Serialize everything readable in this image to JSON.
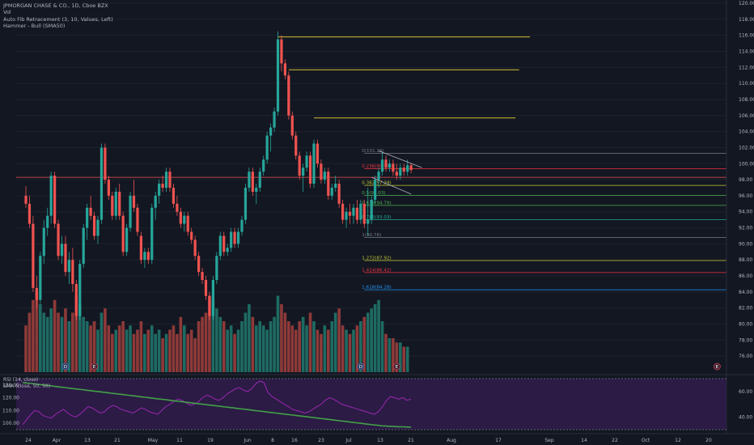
{
  "legend": {
    "symbol": "JPMORGAN CHASE & CO., 1D, Cboe BZX",
    "vol": "Vol",
    "fib": "Auto Fib Retracement (3, 10, Values, Left)",
    "hammer": "Hammer - Bull (SMA50)"
  },
  "rsi_legend": {
    "rsi": "RSI (14, close)",
    "sma": "SMA (close, 50, 50)"
  },
  "colors": {
    "background": "#131722",
    "up": "#26a69a",
    "down": "#ef5350",
    "vol_up": "#1e6b63",
    "vol_down": "#8e3a39",
    "rsi_line": "#9c27b0",
    "sma_line": "#43a047",
    "resistance_line": "#d4c030",
    "price_line": "#ef5350"
  },
  "chart_data": [
    {
      "type": "candlestick",
      "title": "JPMORGAN CHASE & CO., 1D, Cboe BZX",
      "ylim": [
        74,
        120
      ],
      "y_ticks": [
        "120.00",
        "118.00",
        "116.00",
        "114.00",
        "112.00",
        "110.00",
        "108.00",
        "106.00",
        "104.00",
        "102.00",
        "100.00",
        "98.00",
        "96.00",
        "94.00",
        "92.00",
        "90.00",
        "88.00",
        "86.00",
        "84.00",
        "82.00",
        "80.00",
        "78.00",
        "76.00"
      ],
      "x_ticks": [
        "24",
        "Apr",
        "13",
        "21",
        "May",
        "11",
        "19",
        "Jun",
        "8",
        "16",
        "23",
        "Jul",
        "13",
        "21",
        "Aug",
        "17",
        "Sep",
        "14",
        "22",
        "Oct",
        "12",
        "20"
      ],
      "ohlc": [
        [
          96,
          97.2,
          94.5,
          95
        ],
        [
          95,
          96,
          92,
          92.5
        ],
        [
          92.5,
          93.5,
          84,
          84.5
        ],
        [
          84.5,
          86,
          82,
          83
        ],
        [
          83,
          89,
          82.5,
          88.5
        ],
        [
          88.5,
          93,
          87.5,
          92
        ],
        [
          92,
          94.5,
          91,
          93.5
        ],
        [
          93.5,
          99,
          92.5,
          98.5
        ],
        [
          98.5,
          99,
          92,
          92.5
        ],
        [
          92.5,
          93,
          88,
          88.5
        ],
        [
          88.5,
          91,
          87.5,
          90
        ],
        [
          90,
          91,
          86,
          86.5
        ],
        [
          86.5,
          89,
          85,
          88
        ],
        [
          88,
          89.5,
          84,
          85
        ],
        [
          85,
          85.5,
          80.5,
          81
        ],
        [
          81,
          88,
          80.5,
          87.5
        ],
        [
          87.5,
          92.5,
          87,
          92
        ],
        [
          92,
          95,
          90.5,
          94.5
        ],
        [
          94.5,
          96,
          93,
          93.5
        ],
        [
          93.5,
          94,
          90.5,
          91
        ],
        [
          91,
          93.5,
          90,
          93
        ],
        [
          93,
          102.5,
          92.5,
          102
        ],
        [
          102,
          102.5,
          97.5,
          98
        ],
        [
          98,
          98.5,
          95.5,
          96
        ],
        [
          96,
          96.5,
          93,
          93.5
        ],
        [
          93.5,
          97,
          93,
          96.5
        ],
        [
          96.5,
          97.5,
          93,
          93.5
        ],
        [
          93.5,
          94,
          88.5,
          89
        ],
        [
          89,
          92.5,
          88.5,
          92
        ],
        [
          92,
          96.5,
          91.5,
          96
        ],
        [
          96,
          98,
          94,
          94.5
        ],
        [
          94.5,
          95,
          91,
          91.5
        ],
        [
          91,
          91.5,
          87.5,
          88
        ],
        [
          88,
          89.5,
          87,
          89
        ],
        [
          89,
          89.5,
          87.5,
          88
        ],
        [
          88,
          95,
          87.5,
          94.5
        ],
        [
          94.5,
          96.5,
          93,
          96
        ],
        [
          96,
          98,
          95,
          97.5
        ],
        [
          97.5,
          98.5,
          96.5,
          97
        ],
        [
          97,
          99.5,
          96.5,
          99
        ],
        [
          99,
          99.5,
          96.5,
          97
        ],
        [
          97,
          97.5,
          94.5,
          95
        ],
        [
          95,
          96,
          93.5,
          94
        ],
        [
          94,
          94.5,
          92,
          92.5
        ],
        [
          92.5,
          94,
          91.5,
          93.5
        ],
        [
          93.5,
          94,
          91,
          91.5
        ],
        [
          91.5,
          92,
          90,
          90.5
        ],
        [
          90.5,
          91,
          88,
          88.5
        ],
        [
          88.5,
          89,
          86,
          86.5
        ],
        [
          86.5,
          87,
          85,
          85.5
        ],
        [
          85.5,
          86,
          83,
          83.5
        ],
        [
          83.5,
          84,
          80.5,
          81
        ],
        [
          81,
          86,
          80.5,
          85.5
        ],
        [
          85.5,
          89,
          85,
          88.5
        ],
        [
          88.5,
          91.5,
          88,
          91
        ],
        [
          91,
          91.5,
          88.5,
          89
        ],
        [
          89,
          90,
          88.5,
          89.5
        ],
        [
          89.5,
          92,
          89,
          91.5
        ],
        [
          91.5,
          92,
          89.5,
          90
        ],
        [
          90,
          92,
          89.5,
          91.5
        ],
        [
          91.5,
          93.5,
          91,
          93
        ],
        [
          93,
          97.5,
          92.5,
          97
        ],
        [
          97,
          99.5,
          96.5,
          99
        ],
        [
          99,
          99.5,
          96,
          96.5
        ],
        [
          96.5,
          97.5,
          95,
          97
        ],
        [
          97,
          99.5,
          96.5,
          99
        ],
        [
          99,
          101,
          98.5,
          100.5
        ],
        [
          100.5,
          104,
          100,
          103.5
        ],
        [
          103.5,
          105,
          101.5,
          104.5
        ],
        [
          104.5,
          107,
          104,
          106.5
        ],
        [
          106.5,
          116.5,
          106,
          115.5
        ],
        [
          115.5,
          116,
          111.5,
          112.5
        ],
        [
          112.5,
          113,
          110.5,
          111
        ],
        [
          111,
          111.5,
          105.5,
          106
        ],
        [
          106,
          106.5,
          103,
          103.5
        ],
        [
          103.5,
          104,
          100.5,
          101
        ],
        [
          101,
          101.5,
          98,
          98.5
        ],
        [
          98.5,
          100,
          96.5,
          99.5
        ],
        [
          99.5,
          101.5,
          99,
          101
        ],
        [
          101,
          101.5,
          97,
          97.5
        ],
        [
          97.5,
          103,
          97,
          102.5
        ],
        [
          102.5,
          103,
          99.5,
          100
        ],
        [
          100,
          100.5,
          97.5,
          98
        ],
        [
          98,
          99.5,
          97.5,
          99
        ],
        [
          99,
          99.5,
          95.5,
          96
        ],
        [
          96,
          97.5,
          95.5,
          97
        ],
        [
          97,
          98.5,
          96.5,
          97.5
        ],
        [
          97.5,
          98,
          94.5,
          95
        ],
        [
          95,
          95.5,
          92.5,
          93
        ],
        [
          93,
          94.5,
          92,
          94
        ],
        [
          94,
          95,
          92.5,
          93.5
        ],
        [
          93.5,
          95,
          92.5,
          94.5
        ],
        [
          94.5,
          95.5,
          92.5,
          93
        ],
        [
          93,
          95.5,
          92.5,
          95
        ],
        [
          95,
          95.5,
          92,
          92.5
        ],
        [
          92.5,
          97,
          91,
          93
        ],
        [
          93,
          96,
          92.5,
          95.5
        ],
        [
          95.5,
          98.5,
          95,
          98
        ],
        [
          98,
          99.5,
          97,
          99
        ],
        [
          99,
          101.5,
          98.5,
          100.5
        ],
        [
          100.5,
          101,
          99,
          99.5
        ],
        [
          99.5,
          100.5,
          99,
          100
        ],
        [
          100,
          100.5,
          98.5,
          99
        ],
        [
          99,
          100,
          98,
          98.5
        ],
        [
          98.5,
          100,
          98,
          99.5
        ],
        [
          99.5,
          100,
          98.5,
          99
        ],
        [
          99,
          100.5,
          98.5,
          99.8
        ],
        [
          99.8,
          100,
          98.8,
          99.2
        ]
      ],
      "volume_rel": [
        0.55,
        0.7,
        0.85,
        0.95,
        0.8,
        0.7,
        0.65,
        0.75,
        0.85,
        0.7,
        0.65,
        0.75,
        0.6,
        0.7,
        0.9,
        0.8,
        0.65,
        0.6,
        0.55,
        0.6,
        0.5,
        0.7,
        0.75,
        0.55,
        0.45,
        0.5,
        0.55,
        0.6,
        0.5,
        0.55,
        0.45,
        0.5,
        0.6,
        0.45,
        0.5,
        0.55,
        0.45,
        0.5,
        0.4,
        0.45,
        0.5,
        0.55,
        0.45,
        0.65,
        0.55,
        0.45,
        0.5,
        0.4,
        0.6,
        0.65,
        0.7,
        0.9,
        0.85,
        0.75,
        0.65,
        0.6,
        0.5,
        0.55,
        0.45,
        0.5,
        0.6,
        0.7,
        0.8,
        0.65,
        0.55,
        0.6,
        0.55,
        0.5,
        0.6,
        0.65,
        0.9,
        0.8,
        0.7,
        0.6,
        0.55,
        0.5,
        0.6,
        0.65,
        0.55,
        0.7,
        0.6,
        0.5,
        0.45,
        0.55,
        0.5,
        0.6,
        0.7,
        0.75,
        0.55,
        0.5,
        0.45,
        0.5,
        0.55,
        0.6,
        0.65,
        0.7,
        0.75,
        0.8,
        0.85,
        0.6,
        0.45,
        0.4,
        0.4,
        0.35,
        0.35,
        0.3,
        0.3
      ],
      "fib_levels": [
        {
          "label": "0(101.29)",
          "price": 101.29,
          "color": "#787b86"
        },
        {
          "label": "0.236(99.37)",
          "price": 99.37,
          "color": "#f23645"
        },
        {
          "label": "0.382(97.29)",
          "price": 97.29,
          "color": "#c0ca33"
        },
        {
          "label": "0.5(96.03)",
          "price": 96.03,
          "color": "#4caf50"
        },
        {
          "label": "0.618(94.79)",
          "price": 94.79,
          "color": "#4caf50"
        },
        {
          "label": "0.786(93.03)",
          "price": 93.03,
          "color": "#22ab94"
        },
        {
          "label": "1(90.78)",
          "price": 90.78,
          "color": "#787b86"
        },
        {
          "label": "1.272(87.92)",
          "price": 87.92,
          "color": "#c0ca33"
        },
        {
          "label": "1.414(86.42)",
          "price": 86.42,
          "color": "#f23645"
        },
        {
          "label": "1.618(84.28)",
          "price": 84.28,
          "color": "#2196f3"
        }
      ],
      "resistance_lines": [
        {
          "price": 115.8,
          "from_bar": 70,
          "to_bar": 140
        },
        {
          "price": 111.7,
          "from_bar": 73,
          "to_bar": 137
        },
        {
          "price": 105.7,
          "from_bar": 80,
          "to_bar": 136
        }
      ],
      "current_price": 98.3,
      "event_markers": [
        {
          "label": "D",
          "bar": 11
        },
        {
          "label": "E",
          "bar": 19
        },
        {
          "label": "D",
          "bar": 93
        },
        {
          "label": "E",
          "bar": 103
        },
        {
          "label": "E",
          "bar": 192
        }
      ]
    },
    {
      "type": "line",
      "title": "RSI (14, close)",
      "ylim": [
        30,
        70
      ],
      "y_ticks_left": [
        "130.00",
        "120.00",
        "110.00",
        "100.00"
      ],
      "y_ticks_right": [
        "60.00",
        "40.00"
      ],
      "rsi": [
        34,
        38,
        42,
        45,
        44,
        41,
        40,
        39,
        42,
        44,
        46,
        43,
        41,
        40,
        42,
        45,
        48,
        47,
        45,
        43,
        44,
        47,
        49,
        48,
        46,
        45,
        44,
        43,
        45,
        47,
        46,
        44,
        43,
        42,
        45,
        48,
        50,
        52,
        54,
        53,
        51,
        49,
        50,
        52,
        55,
        57,
        56,
        54,
        53,
        55,
        58,
        60,
        62,
        63,
        61,
        60,
        62,
        66,
        68,
        67,
        59,
        56,
        54,
        52,
        50,
        48,
        46,
        45,
        44,
        43,
        44,
        46,
        48,
        50,
        53,
        55,
        54,
        52,
        50,
        49,
        48,
        47,
        46,
        45,
        44,
        43,
        42,
        44,
        48,
        53,
        56,
        55,
        54,
        55,
        53,
        54
      ],
      "sma": [
        132,
        131.6,
        131.2,
        130.8,
        130.4,
        130,
        129.6,
        129.2,
        128.8,
        128.4,
        128,
        127.6,
        127.2,
        126.8,
        126.4,
        126,
        125.6,
        125.2,
        124.8,
        124.4,
        124,
        123.6,
        123.2,
        122.8,
        122.4,
        122,
        121.6,
        121.2,
        120.8,
        120.4,
        120,
        119.6,
        119.2,
        118.8,
        118.4,
        118,
        117.6,
        117.2,
        116.8,
        116.4,
        116,
        115.6,
        115.2,
        114.8,
        114.4,
        114,
        113.6,
        113.2,
        112.8,
        112.4,
        112,
        111.6,
        111.2,
        110.8,
        110.4,
        110,
        109.6,
        109.2,
        108.8,
        108.4,
        108,
        107.6,
        107.2,
        106.8,
        106.4,
        106,
        105.6,
        105.2,
        104.8,
        104.4,
        104,
        103.6,
        103.2,
        102.8,
        102.4,
        102,
        101.6,
        101.2,
        100.8,
        100.4,
        100,
        99.6,
        99.2,
        98.8,
        98.4,
        98,
        97.8,
        97.6,
        97.4,
        97.3,
        97.2,
        97.1,
        97
      ]
    }
  ]
}
